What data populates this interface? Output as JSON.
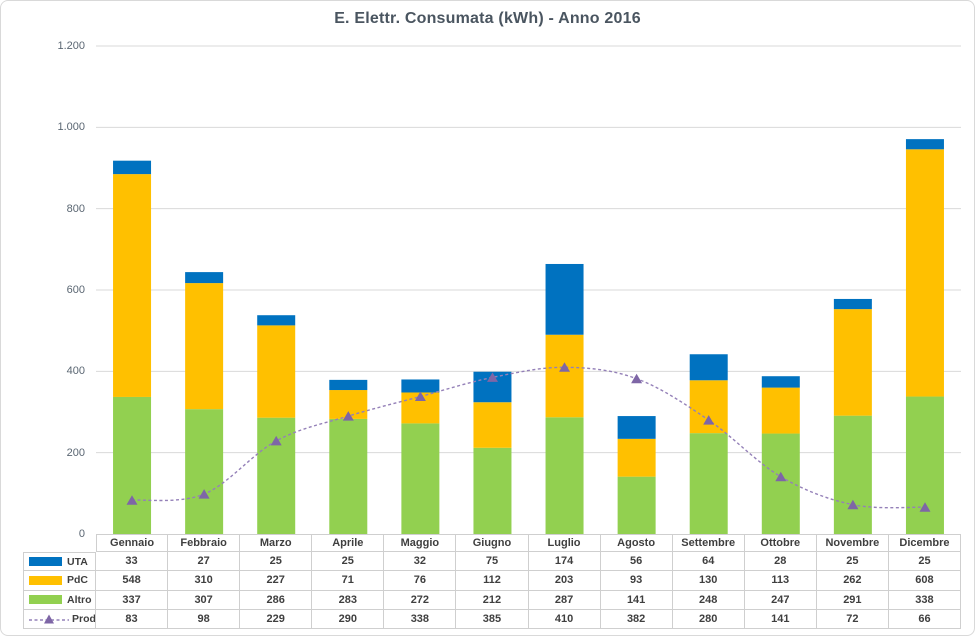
{
  "chart_data": {
    "type": "combo-stacked-bar-plus-line",
    "title": "E. Elettr. Consumata (kWh) - Anno 2016",
    "categories": [
      "Gennaio",
      "Febbraio",
      "Marzo",
      "Aprile",
      "Maggio",
      "Giugno",
      "Luglio",
      "Agosto",
      "Settembre",
      "Ottobre",
      "Novembre",
      "Dicembre"
    ],
    "series": [
      {
        "name": "UTA",
        "type": "bar",
        "color": "#0072C0",
        "values": [
          33,
          27,
          25,
          25,
          32,
          75,
          174,
          56,
          64,
          28,
          25,
          25
        ]
      },
      {
        "name": "PdC",
        "type": "bar",
        "color": "#FFC000",
        "values": [
          548,
          310,
          227,
          71,
          76,
          112,
          203,
          93,
          130,
          113,
          262,
          608
        ]
      },
      {
        "name": "Altro",
        "type": "bar",
        "color": "#92D050",
        "values": [
          337,
          307,
          286,
          283,
          272,
          212,
          287,
          141,
          248,
          247,
          291,
          338
        ]
      },
      {
        "name": "Prod.",
        "type": "line",
        "color": "#7E66A6",
        "dash_color": "#9480B8",
        "marker": "triangle",
        "line_style": "smooth-dashed",
        "values": [
          83,
          98,
          229,
          290,
          338,
          385,
          410,
          382,
          280,
          141,
          72,
          66
        ]
      }
    ],
    "stack_order_bottom_to_top": [
      "Altro",
      "PdC",
      "UTA"
    ],
    "ylim": [
      0,
      1200
    ],
    "ytick_step": 200,
    "ytick_labels": [
      "0",
      "200",
      "400",
      "600",
      "800",
      "1.000",
      "1.200"
    ],
    "grid": "horizontal",
    "gridline_color": "#D9D9D9",
    "legend_position": "data-table-left-column",
    "data_table_shown": true
  },
  "style": {
    "table_border_color": "#CFCFCF",
    "title_color": "#4A5560",
    "axis_label_color": "#5A6672",
    "table_text_color": "#3F3F3F"
  }
}
